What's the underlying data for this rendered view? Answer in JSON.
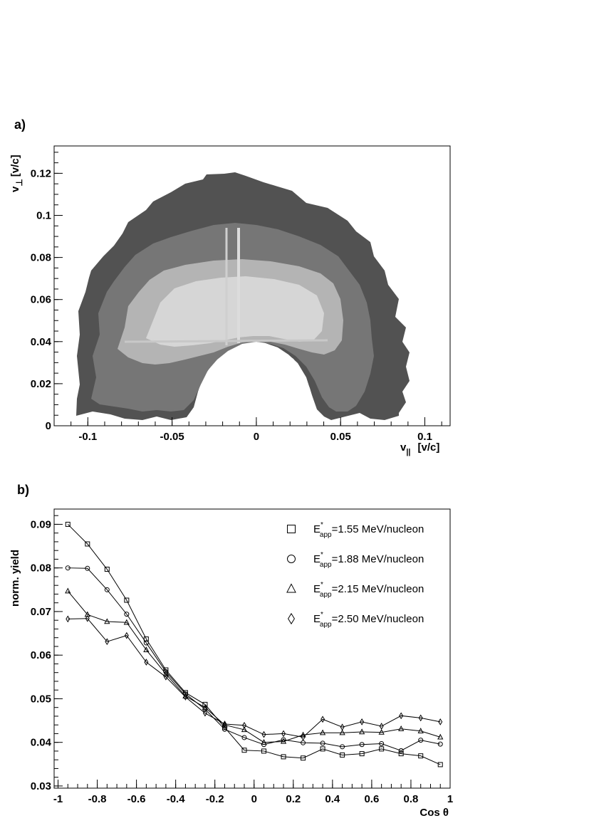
{
  "chart_data": [
    {
      "type": "heatmap",
      "panel_label": "a)",
      "xlabel_main": "v",
      "xlabel_sub": "||",
      "xlabel_unit": "[v/c]",
      "ylabel_main": "v",
      "ylabel_sub": "⊥",
      "ylabel_unit": "[v/c]",
      "xlim": [
        -0.12,
        0.115
      ],
      "ylim": [
        0,
        0.133
      ],
      "xticks": [
        {
          "v": -0.1,
          "label": "-0.1"
        },
        {
          "v": -0.05,
          "label": "-0.05"
        },
        {
          "v": 0,
          "label": "0"
        },
        {
          "v": 0.05,
          "label": "0.05"
        },
        {
          "v": 0.1,
          "label": "0.1"
        }
      ],
      "yticks": [
        {
          "v": 0,
          "label": "0"
        },
        {
          "v": 0.02,
          "label": "0.02"
        },
        {
          "v": 0.04,
          "label": "0.04"
        },
        {
          "v": 0.06,
          "label": "0.06"
        },
        {
          "v": 0.08,
          "label": "0.08"
        },
        {
          "v": 0.1,
          "label": "0.1"
        },
        {
          "v": 0.12,
          "label": "0.12"
        }
      ],
      "colors": {
        "outer": "#525252",
        "mid": "#767676",
        "inner": "#b4b4b4",
        "core": "#d6d6d6"
      }
    },
    {
      "type": "line",
      "panel_label": "b)",
      "xlabel": "Cos θ",
      "ylabel": "norm. yield",
      "xlim": [
        -1.02,
        1
      ],
      "ylim": [
        0.0295,
        0.0935
      ],
      "xticks": [
        {
          "v": -1,
          "label": "-1"
        },
        {
          "v": -0.8,
          "label": "-0.8"
        },
        {
          "v": -0.6,
          "label": "-0.6"
        },
        {
          "v": -0.4,
          "label": "-0.4"
        },
        {
          "v": -0.2,
          "label": "-0.2"
        },
        {
          "v": 0,
          "label": "0"
        },
        {
          "v": 0.2,
          "label": "0.2"
        },
        {
          "v": 0.4,
          "label": "0.4"
        },
        {
          "v": 0.6,
          "label": "0.6"
        },
        {
          "v": 0.8,
          "label": "0.8"
        },
        {
          "v": 1,
          "label": "1"
        }
      ],
      "yticks": [
        {
          "v": 0.03,
          "label": "0.03"
        },
        {
          "v": 0.04,
          "label": "0.04"
        },
        {
          "v": 0.05,
          "label": "0.05"
        },
        {
          "v": 0.06,
          "label": "0.06"
        },
        {
          "v": 0.07,
          "label": "0.07"
        },
        {
          "v": 0.08,
          "label": "0.08"
        },
        {
          "v": 0.09,
          "label": "0.09"
        }
      ],
      "x": [
        -0.95,
        -0.85,
        -0.75,
        -0.65,
        -0.55,
        -0.45,
        -0.35,
        -0.25,
        -0.15,
        -0.05,
        0.05,
        0.15,
        0.25,
        0.35,
        0.45,
        0.55,
        0.65,
        0.75,
        0.85,
        0.95
      ],
      "legend_position": "top-right",
      "series": [
        {
          "name_main": "E",
          "name_sup": "*",
          "name_sub": "app",
          "name_rest": "=1.55 MeV/nucleon",
          "marker": "square",
          "values": [
            0.09,
            0.0855,
            0.0797,
            0.0726,
            0.0637,
            0.0566,
            0.0514,
            0.0487,
            0.0434,
            0.0382,
            0.038,
            0.0367,
            0.0364,
            0.0385,
            0.0371,
            0.0374,
            0.0385,
            0.0374,
            0.0369,
            0.0349
          ]
        },
        {
          "name_main": "E",
          "name_sup": "*",
          "name_sub": "app",
          "name_rest": "=1.88 MeV/nucleon",
          "marker": "circle",
          "values": [
            0.08,
            0.0799,
            0.075,
            0.0694,
            0.0628,
            0.0562,
            0.0511,
            0.0476,
            0.043,
            0.0411,
            0.0395,
            0.0406,
            0.0399,
            0.0398,
            0.039,
            0.0395,
            0.0397,
            0.0381,
            0.0405,
            0.0396
          ]
        },
        {
          "name_main": "E",
          "name_sup": "*",
          "name_sub": "app",
          "name_rest": "=2.15 MeV/nucleon",
          "marker": "triangle",
          "values": [
            0.0747,
            0.0693,
            0.0677,
            0.0675,
            0.0612,
            0.0557,
            0.0506,
            0.048,
            0.044,
            0.0429,
            0.04,
            0.0402,
            0.0417,
            0.0422,
            0.0422,
            0.0424,
            0.0423,
            0.0431,
            0.0426,
            0.0412
          ]
        },
        {
          "name_main": "E",
          "name_sup": "*",
          "name_sub": "app",
          "name_rest": "=2.50 MeV/nucleon",
          "marker": "diamond",
          "values": [
            0.0683,
            0.0684,
            0.0631,
            0.0645,
            0.0584,
            0.055,
            0.0504,
            0.0467,
            0.0442,
            0.0439,
            0.0418,
            0.042,
            0.0412,
            0.0453,
            0.0435,
            0.0447,
            0.0437,
            0.0461,
            0.0456,
            0.0447
          ]
        }
      ]
    }
  ]
}
